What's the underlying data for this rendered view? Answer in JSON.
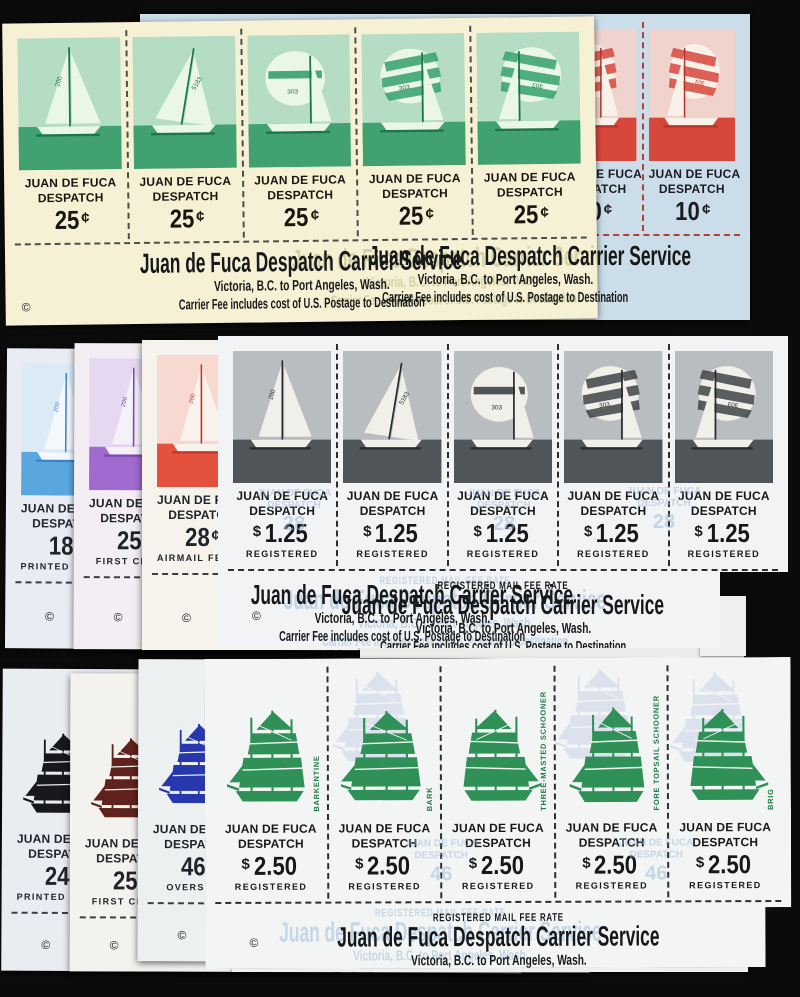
{
  "brand": {
    "heading": "Juan de Fuca Despatch Carrier Service",
    "line2": "Victoria, B.C. to Port Angeles, Wash.",
    "line3": "Carrier Fee includes cost of U.S. Postage to Destination",
    "registered_note": "REGISTERED MAIL FEE RATE",
    "stamp_title1": "JUAN DE FUCA",
    "stamp_title2": "DESPATCH",
    "copyright": "©"
  },
  "art": {
    "sail_numbers": [
      "200",
      "5183",
      "303",
      "303",
      "303"
    ],
    "ghost_text_blue": "#97b7dc",
    "ghost_text_olive": "#b2b279",
    "ghost_ship_color": "#4a68c4"
  },
  "sheets": [
    {
      "id": "top_blue",
      "name": "sheet-10c-red-on-blue",
      "style": "photo",
      "count": 5,
      "paper": "#cadde9",
      "palette": {
        "ink": "#d8473c",
        "sky": "#f0d3cd",
        "sea": "#d8473c",
        "sail": "#f8f1ea",
        "shade": "#b53327",
        "dash": "#b24034",
        "text": "#1a1c20"
      },
      "variants": [
        0,
        1,
        2,
        3,
        4
      ],
      "value": {
        "pre": "",
        "main": "10",
        "suf": "¢"
      },
      "rate": "",
      "footer": "plain",
      "ghost_footer": "",
      "ghost_value": "",
      "ghost_count": 0,
      "ghost_ships": 0,
      "ship_labels": null
    },
    {
      "id": "top_cream",
      "name": "sheet-25c-green-on-cream",
      "style": "photo",
      "count": 5,
      "paper": "#f6f1d4",
      "palette": {
        "ink": "#35a06b",
        "sky": "#b4ddc3",
        "sea": "#41a171",
        "sail": "#eaf6e6",
        "shade": "#19774a",
        "dash": "#46514a",
        "text": "#191510"
      },
      "variants": [
        0,
        1,
        2,
        3,
        4
      ],
      "value": {
        "pre": "",
        "main": "25",
        "suf": "¢"
      },
      "rate": "",
      "footer": "plain",
      "ghost_footer": "gright",
      "ghost_value": "",
      "ghost_count": 0,
      "ghost_ships": 0,
      "ship_labels": null
    },
    {
      "id": "mid_blue18",
      "name": "sheet-18c-printed-matter-blue",
      "style": "photo",
      "count": 5,
      "paper": "#e9edf3",
      "palette": {
        "ink": "#5aa7e0",
        "sky": "#dceaf6",
        "sea": "#5aa7e0",
        "sail": "#f4f8fb",
        "shade": "#3c85c4",
        "dash": "#3a3f46",
        "text": "#20242a"
      },
      "variants": [
        0,
        1,
        2,
        3,
        4
      ],
      "value": {
        "pre": "",
        "main": "18",
        "suf": "¢"
      },
      "rate": "PRINTED MATTER",
      "footer": "plain",
      "ghost_footer": "",
      "ghost_value": "",
      "ghost_count": 0,
      "ghost_ships": 0,
      "ship_labels": null
    },
    {
      "id": "mid_purple25",
      "name": "sheet-25c-first-class-purple",
      "style": "photo",
      "count": 5,
      "paper": "#f2eef3",
      "palette": {
        "ink": "#a873d2",
        "sky": "#e6d8f1",
        "sea": "#a06ad0",
        "sail": "#f6f1f9",
        "shade": "#7e4aaf",
        "dash": "#3a3f46",
        "text": "#20242a"
      },
      "variants": [
        0,
        1,
        2,
        3,
        4
      ],
      "value": {
        "pre": "",
        "main": "25",
        "suf": "¢"
      },
      "rate": "FIRST CLASS",
      "footer": "plain",
      "ghost_footer": "",
      "ghost_value": "",
      "ghost_count": 0,
      "ghost_ships": 0,
      "ship_labels": null
    },
    {
      "id": "mid_red28",
      "name": "sheet-28c-airmail-red",
      "style": "photo",
      "count": 5,
      "paper": "#f6f2ec",
      "palette": {
        "ink": "#e4513d",
        "sky": "#f7d9d2",
        "sea": "#e4513d",
        "sail": "#faf2ec",
        "shade": "#c03a28",
        "dash": "#3a3f46",
        "text": "#20242a"
      },
      "variants": [
        0,
        1,
        2,
        3,
        4
      ],
      "value": {
        "pre": "",
        "main": "28",
        "suf": "¢"
      },
      "rate": "AIRMAIL FEE RATE",
      "footer": "plain",
      "ghost_footer": "",
      "ghost_value": "",
      "ghost_count": 0,
      "ghost_ships": 0,
      "ship_labels": null
    },
    {
      "id": "mid_main125",
      "name": "sheet-1.25-registered-bw",
      "style": "photo",
      "count": 5,
      "paper": "#f1f3f4",
      "palette": {
        "ink": "#3f4448",
        "sky": "#b9bdbf",
        "sea": "#50555a",
        "sail": "#f1efe9",
        "shade": "#26292d",
        "dash": "#2e2e30",
        "text": "#17181a"
      },
      "variants": [
        0,
        1,
        2,
        3,
        4
      ],
      "value": {
        "pre": "$",
        "main": "1.25",
        "suf": ""
      },
      "rate": "REGISTERED",
      "footer": "registered",
      "ghost_footer": "gleft",
      "ghost_value": "28",
      "ghost_count": 3,
      "ghost_ships": 0,
      "ship_labels": null
    },
    {
      "id": "bot_black24",
      "name": "sheet-24c-printed-matter-black-ship",
      "style": "ship",
      "count": 5,
      "paper": "#e9edf2",
      "palette": {
        "ink": "#17181c",
        "sky": "#e9edf2",
        "sea": "#17181c",
        "sail": "#e9edf2",
        "shade": "#17181c",
        "dash": "#3a3f46",
        "text": "#20242a"
      },
      "variants": [
        0,
        1,
        2,
        3,
        4
      ],
      "value": {
        "pre": "",
        "main": "24",
        "suf": "¢"
      },
      "rate": "PRINTED MATTER",
      "footer": "plain",
      "ghost_footer": "",
      "ghost_value": "",
      "ghost_count": 0,
      "ghost_ships": 0,
      "ship_labels": null
    },
    {
      "id": "bot_maroon25",
      "name": "sheet-25c-first-class-maroon-ship",
      "style": "ship",
      "count": 5,
      "paper": "#f3f2ee",
      "palette": {
        "ink": "#5f221d",
        "sky": "#f3f2ee",
        "sea": "#5f221d",
        "sail": "#f3f2ee",
        "shade": "#5f221d",
        "dash": "#3a3f46",
        "text": "#20242a"
      },
      "variants": [
        0,
        1,
        2,
        3,
        4
      ],
      "value": {
        "pre": "",
        "main": "25",
        "suf": "¢"
      },
      "rate": "FIRST CLASS",
      "footer": "plain",
      "ghost_footer": "",
      "ghost_value": "",
      "ghost_count": 0,
      "ghost_ships": 0,
      "ship_labels": null
    },
    {
      "id": "bot_blue46",
      "name": "sheet-46c-overseas-blue-ship",
      "style": "ship",
      "count": 5,
      "paper": "#edf0f1",
      "palette": {
        "ink": "#2738ae",
        "sky": "#edf0f1",
        "sea": "#2738ae",
        "sail": "#edf0f1",
        "shade": "#2738ae",
        "dash": "#3a3f46",
        "text": "#20242a"
      },
      "variants": [
        0,
        1,
        2,
        3,
        4
      ],
      "value": {
        "pre": "",
        "main": "46",
        "suf": "¢"
      },
      "rate": "OVERSEAS",
      "footer": "plain",
      "ghost_footer": "",
      "ghost_value": "",
      "ghost_count": 0,
      "ghost_ships": 0,
      "ship_labels": null
    },
    {
      "id": "bot_green250",
      "name": "sheet-2.50-registered-green-ships",
      "style": "ship",
      "count": 5,
      "paper": "#f3f5f4",
      "palette": {
        "ink": "#2f9157",
        "sky": "#f3f5f4",
        "sea": "#2f9157",
        "sail": "#f3f5f4",
        "shade": "#1f7a44",
        "dash": "#2e2e30",
        "text": "#17181a"
      },
      "variants": [
        0,
        1,
        2,
        3,
        4
      ],
      "value": {
        "pre": "$",
        "main": "2.50",
        "suf": ""
      },
      "rate": "REGISTERED",
      "footer": "registered",
      "ghost_footer": "gleft",
      "ghost_value": "46",
      "ghost_count": 2,
      "ghost_ships": 3,
      "ship_labels": [
        "BARKENTINE",
        "BARK",
        "THREE-MASTED SCHOONER",
        "FORE TOPSAIL SCHOONER",
        "BRIG"
      ]
    }
  ]
}
